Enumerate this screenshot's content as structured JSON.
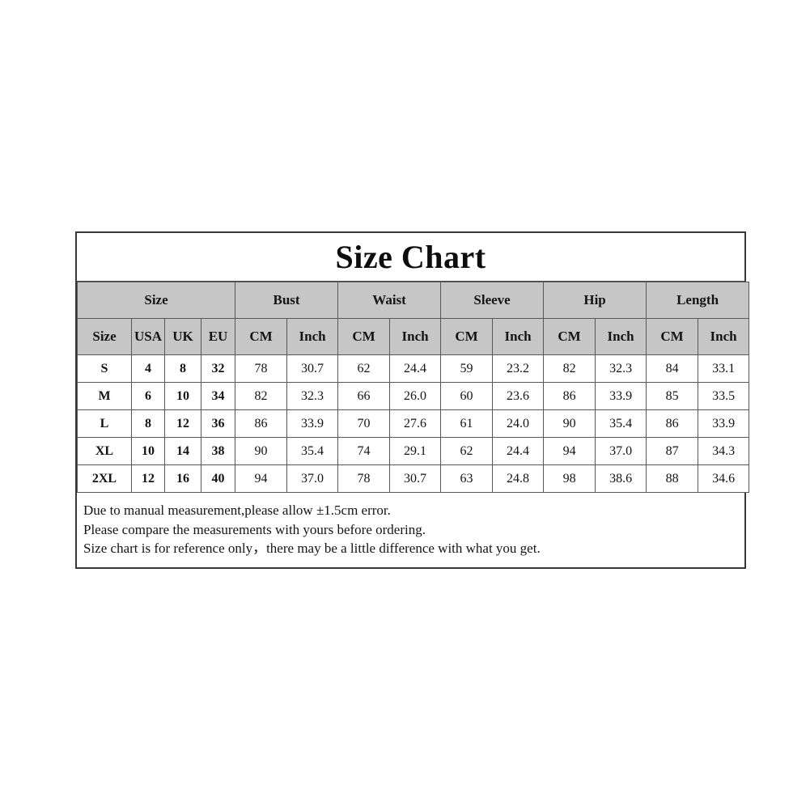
{
  "size_chart": {
    "title": "Size Chart",
    "colors": {
      "header_background": "#c6c6c6",
      "outer_border": "#383838",
      "grid_line": "#585858",
      "text": "#141414",
      "page_background": "#ffffff"
    },
    "notes": [
      "Due to manual measurement,please allow ±1.5cm error.",
      "Please compare the measurements with yours before ordering.",
      "Size chart is for reference only，there may be a little difference with what you get."
    ]
  },
  "chart_data": {
    "type": "table",
    "title": "Size Chart",
    "header_groups": [
      {
        "label": "Size",
        "span": 4
      },
      {
        "label": "Bust",
        "span": 2
      },
      {
        "label": "Waist",
        "span": 2
      },
      {
        "label": "Sleeve",
        "span": 2
      },
      {
        "label": "Hip",
        "span": 2
      },
      {
        "label": "Length",
        "span": 2
      }
    ],
    "sub_headers": [
      "Size",
      "USA",
      "UK",
      "EU",
      "CM",
      "Inch",
      "CM",
      "Inch",
      "CM",
      "Inch",
      "CM",
      "Inch",
      "CM",
      "Inch"
    ],
    "rows": [
      [
        "S",
        "4",
        "8",
        "32",
        "78",
        "30.7",
        "62",
        "24.4",
        "59",
        "23.2",
        "82",
        "32.3",
        "84",
        "33.1"
      ],
      [
        "M",
        "6",
        "10",
        "34",
        "82",
        "32.3",
        "66",
        "26.0",
        "60",
        "23.6",
        "86",
        "33.9",
        "85",
        "33.5"
      ],
      [
        "L",
        "8",
        "12",
        "36",
        "86",
        "33.9",
        "70",
        "27.6",
        "61",
        "24.0",
        "90",
        "35.4",
        "86",
        "33.9"
      ],
      [
        "XL",
        "10",
        "14",
        "38",
        "90",
        "35.4",
        "74",
        "29.1",
        "62",
        "24.4",
        "94",
        "37.0",
        "87",
        "34.3"
      ],
      [
        "2XL",
        "12",
        "16",
        "40",
        "94",
        "37.0",
        "78",
        "30.7",
        "63",
        "24.8",
        "98",
        "38.6",
        "88",
        "34.6"
      ]
    ],
    "notes": [
      "Due to manual measurement,please allow ±1.5cm error.",
      "Please compare the measurements with yours before ordering.",
      "Size chart is for reference only，there may be a little difference with what you get."
    ]
  }
}
